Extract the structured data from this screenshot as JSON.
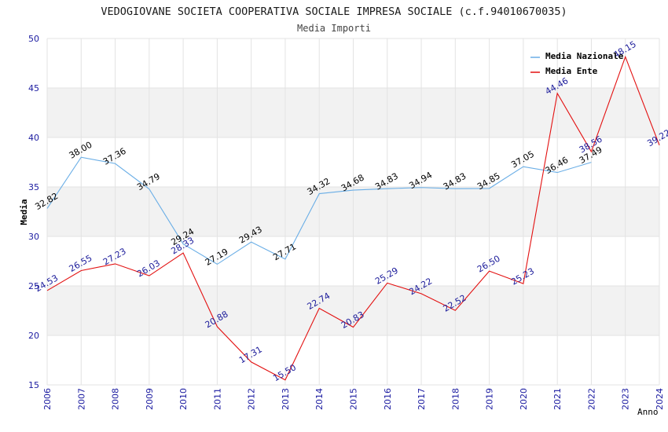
{
  "chart_data": {
    "type": "line",
    "title": "VEDOGIOVANE SOCIETA COOPERATIVA SOCIALE IMPRESA SOCIALE (c.f.94010670035)",
    "subtitle": "Media Importi",
    "xlabel": "Anno",
    "ylabel": "Media",
    "ylim": [
      15,
      50
    ],
    "yticks": [
      15,
      20,
      25,
      30,
      35,
      40,
      45,
      50
    ],
    "x": [
      "2006",
      "2007",
      "2008",
      "2009",
      "2010",
      "2011",
      "2012",
      "2013",
      "2014",
      "2015",
      "2016",
      "2017",
      "2018",
      "2019",
      "2020",
      "2021",
      "2022",
      "2023",
      "2024"
    ],
    "legend_position": "top-right",
    "grid": true,
    "series": [
      {
        "name": "Media Nazionale",
        "color": "#6aaee6",
        "label_color": "#000000",
        "values": [
          32.82,
          38.0,
          37.36,
          34.79,
          29.24,
          27.19,
          29.43,
          27.71,
          34.32,
          34.68,
          34.83,
          34.94,
          34.83,
          34.85,
          37.05,
          36.46,
          37.49,
          null,
          null
        ],
        "labels": [
          "32.82",
          "38.00",
          "37.36",
          "34.79",
          "29.24",
          "27.19",
          "29.43",
          "27.71",
          "34.32",
          "34.68",
          "34.83",
          "34.94",
          "34.83",
          "34.85",
          "37.05",
          "36.46",
          "37.49",
          "",
          ""
        ]
      },
      {
        "name": "Media Ente",
        "color": "#e31010",
        "label_color": "#1a1a9a",
        "values": [
          24.53,
          26.55,
          27.23,
          26.03,
          28.33,
          20.88,
          17.31,
          15.5,
          22.74,
          20.83,
          25.29,
          24.22,
          22.52,
          26.5,
          25.23,
          44.46,
          38.56,
          48.15,
          39.22
        ],
        "labels": [
          "24.53",
          "26.55",
          "27.23",
          "26.03",
          "28.33",
          "20.88",
          "17.31",
          "15.50",
          "22.74",
          "20.83",
          "25.29",
          "24.22",
          "22.52",
          "26.50",
          "25.23",
          "44.46",
          "38.56",
          "48.15",
          "39.22"
        ]
      }
    ]
  }
}
